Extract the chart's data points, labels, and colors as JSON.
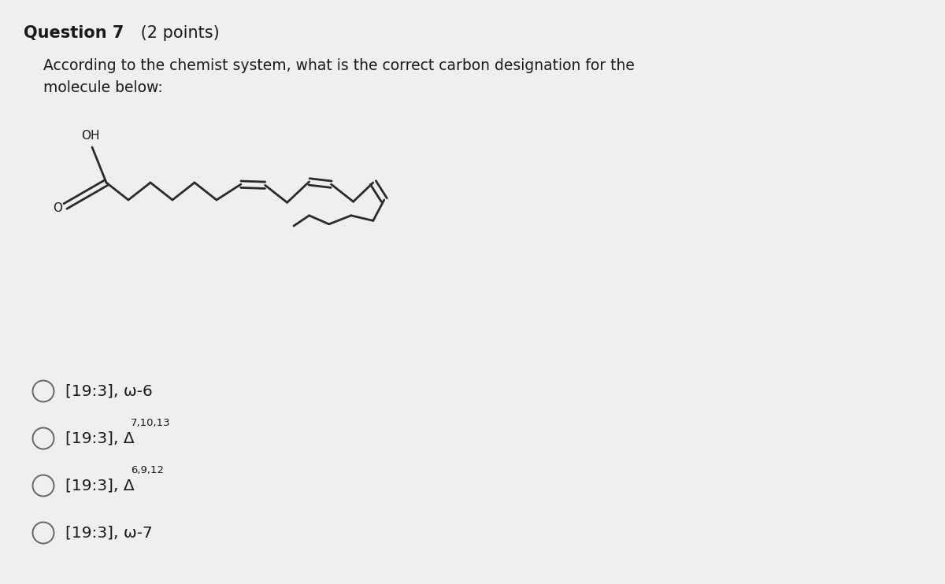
{
  "title_bold": "Question 7",
  "title_normal": " (2 points)",
  "subtitle": "According to the chemist system, what is the correct carbon designation for the\nmolecule below:",
  "background_color": "#efefef",
  "text_color": "#1a1a1a",
  "options": [
    {
      "text": "[19:3], ω-6",
      "superscript": null
    },
    {
      "text": "[19:3], Δ",
      "superscript": "7,10,13"
    },
    {
      "text": "[19:3], Δ",
      "superscript": "6,9,12"
    },
    {
      "text": "[19:3], ω-7",
      "superscript": null
    }
  ],
  "molecule": {
    "chain_color": "#2a2a2a",
    "line_width": 2.0
  }
}
